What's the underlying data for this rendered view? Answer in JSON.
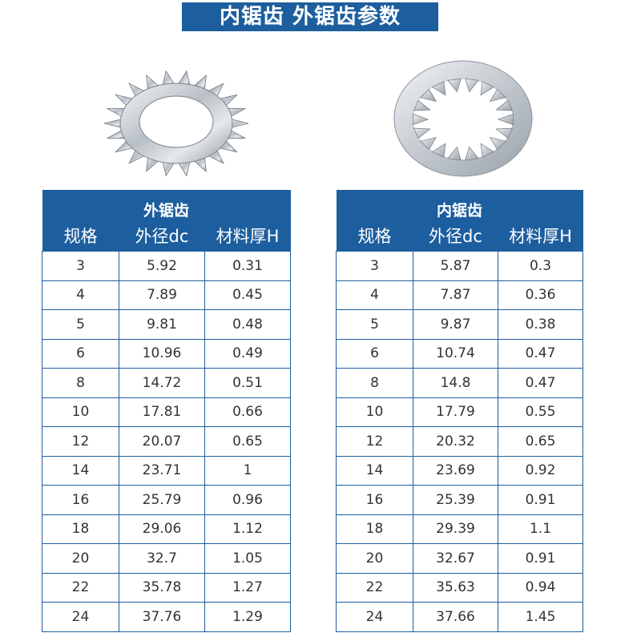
{
  "banner": {
    "title": "内锯齿 外锯齿参数"
  },
  "images": {
    "external": "external-tooth-lock-washer",
    "internal": "internal-tooth-lock-washer"
  },
  "colors": {
    "header_bg": "#1d5e9e",
    "header_text": "#ffffff",
    "cell_text": "#333333",
    "border": "#1d5e9e"
  },
  "external_table": {
    "caption": "外锯齿",
    "headers": [
      "规格",
      "外径dc",
      "材料厚H"
    ],
    "rows": [
      [
        "3",
        "5.92",
        "0.31"
      ],
      [
        "4",
        "7.89",
        "0.45"
      ],
      [
        "5",
        "9.81",
        "0.48"
      ],
      [
        "6",
        "10.96",
        "0.49"
      ],
      [
        "8",
        "14.72",
        "0.51"
      ],
      [
        "10",
        "17.81",
        "0.66"
      ],
      [
        "12",
        "20.07",
        "0.65"
      ],
      [
        "14",
        "23.71",
        "1"
      ],
      [
        "16",
        "25.79",
        "0.96"
      ],
      [
        "18",
        "29.06",
        "1.12"
      ],
      [
        "20",
        "32.7",
        "1.05"
      ],
      [
        "22",
        "35.78",
        "1.27"
      ],
      [
        "24",
        "37.76",
        "1.29"
      ]
    ]
  },
  "internal_table": {
    "caption": "内锯齿",
    "headers": [
      "规格",
      "外径dc",
      "材料厚H"
    ],
    "rows": [
      [
        "3",
        "5.87",
        "0.3"
      ],
      [
        "4",
        "7.87",
        "0.36"
      ],
      [
        "5",
        "9.87",
        "0.38"
      ],
      [
        "6",
        "10.74",
        "0.47"
      ],
      [
        "8",
        "14.8",
        "0.47"
      ],
      [
        "10",
        "17.79",
        "0.55"
      ],
      [
        "12",
        "20.32",
        "0.65"
      ],
      [
        "14",
        "23.69",
        "0.92"
      ],
      [
        "16",
        "25.39",
        "0.91"
      ],
      [
        "18",
        "29.39",
        "1.1"
      ],
      [
        "20",
        "32.67",
        "0.91"
      ],
      [
        "22",
        "35.63",
        "0.94"
      ],
      [
        "24",
        "37.66",
        "1.45"
      ]
    ]
  }
}
